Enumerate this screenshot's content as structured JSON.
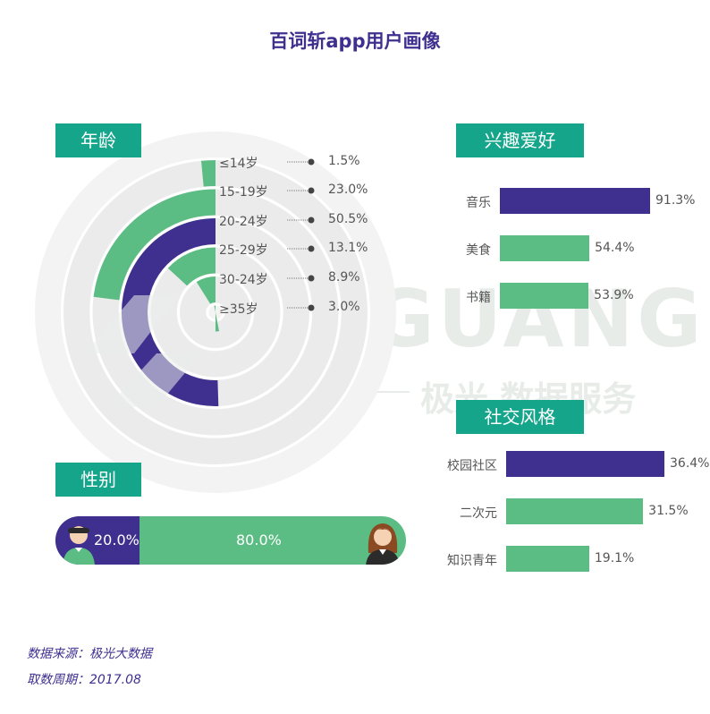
{
  "title": "百词斩app用户画像",
  "watermark": {
    "brand": "JIGUANG",
    "service": "极光 数据服务"
  },
  "colors": {
    "purple": "#3f2f8e",
    "green": "#5bbd83",
    "header": "#14a58a",
    "ring_bg": "#f0f0f0"
  },
  "sections": {
    "age": "年龄",
    "interest": "兴趣爱好",
    "social": "社交风格",
    "gender": "性别"
  },
  "chart_data": [
    {
      "type": "radial-bar",
      "title": "年龄",
      "categories": [
        "≤14岁",
        "15-19岁",
        "20-24岁",
        "25-29岁",
        "30-24岁",
        "≥35岁"
      ],
      "values": [
        1.5,
        23.0,
        50.5,
        13.1,
        8.9,
        3.0
      ],
      "value_labels": [
        "1.5%",
        "23.0%",
        "50.5%",
        "13.1%",
        "8.9%",
        "3.0%"
      ],
      "highlight": "20-24岁"
    },
    {
      "type": "bar",
      "title": "兴趣爱好",
      "categories": [
        "音乐",
        "美食",
        "书籍"
      ],
      "values": [
        91.3,
        54.4,
        53.9
      ],
      "value_labels": [
        "91.3%",
        "54.4%",
        "53.9%"
      ],
      "highlight": "音乐"
    },
    {
      "type": "bar",
      "title": "社交风格",
      "categories": [
        "校园社区",
        "二次元",
        "知识青年"
      ],
      "values": [
        36.4,
        31.5,
        19.1
      ],
      "value_labels": [
        "36.4%",
        "31.5%",
        "19.1%"
      ],
      "highlight": "校园社区"
    },
    {
      "type": "stacked-bar",
      "title": "性别",
      "values": [
        20.0,
        80.0
      ],
      "value_labels": [
        "20.0%",
        "80.0%"
      ]
    }
  ],
  "source": "数据来源：极光大数据",
  "period": "取数周期：2017.08"
}
